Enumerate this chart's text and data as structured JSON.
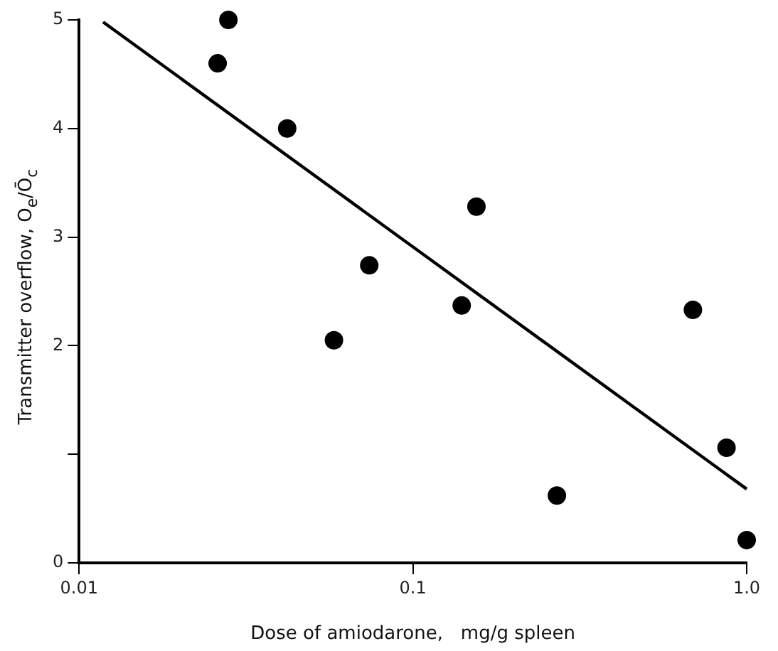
{
  "chart_data": {
    "type": "scatter",
    "xlabel": "Dose of amiodarone,   mg/g spleen",
    "ylabel": "Transmitter overflow,   O$_{e}$/Ō$_{c}$",
    "log": "x",
    "grid": false,
    "legend": false,
    "marker": "circle",
    "xlim": [
      0.01,
      1.0
    ],
    "xticks": [
      {
        "value": 0.01,
        "label": "0.01"
      },
      {
        "value": 0.1,
        "label": "0.1"
      },
      {
        "value": 1.0,
        "label": "1.0"
      }
    ],
    "ylim": [
      0,
      5
    ],
    "yticks": [
      0,
      {
        "value": 1,
        "label": null
      },
      2,
      3,
      4,
      5
    ],
    "series": [
      {
        "color": "#000000",
        "x": [
          0.026,
          0.028,
          0.042,
          0.058,
          0.074,
          0.14,
          0.155,
          0.27,
          0.69,
          0.87,
          1.0
        ],
        "values": [
          4.6,
          5.0,
          4.0,
          2.05,
          2.74,
          2.37,
          3.28,
          0.62,
          2.33,
          1.06,
          0.21
        ]
      },
      {
        "type": "line",
        "color": "#000000",
        "line_style": "solid",
        "marker": "none",
        "x": [
          0.0118,
          1.0
        ],
        "values": [
          4.98,
          0.68
        ]
      }
    ]
  }
}
